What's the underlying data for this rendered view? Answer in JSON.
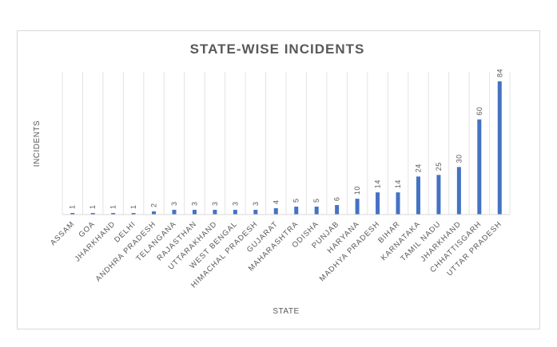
{
  "chart_data": {
    "type": "bar",
    "title": "STATE-WISE INCIDENTS",
    "xlabel": "STATE",
    "ylabel": "INCIDENTS",
    "categories": [
      "ASSAM",
      "GOA",
      "JHARKHAND",
      "DELHI",
      "ANDHRA PRADESH",
      "TELANGANA",
      "RAJASTHAN",
      "UTTARAKHAND",
      "WEST BENGAL",
      "HIMACHAL PRADESH",
      "GUJARAT",
      "MAHARASHTRA",
      "ODISHA",
      "PUNJAB",
      "HARYANA",
      "MADHYA PRADESH",
      "BIHAR",
      "KARNATAKA",
      "TAMIL NADU",
      "JHARKHAND",
      "CHHATTISGARH",
      "UTTAR PRADESH"
    ],
    "values": [
      1,
      1,
      1,
      1,
      2,
      3,
      3,
      3,
      3,
      3,
      4,
      5,
      5,
      6,
      10,
      14,
      14,
      24,
      25,
      30,
      60,
      84
    ],
    "ylim": [
      0,
      84
    ],
    "grid": "vertical",
    "bar_color": "#4472c4",
    "data_labels": true
  }
}
